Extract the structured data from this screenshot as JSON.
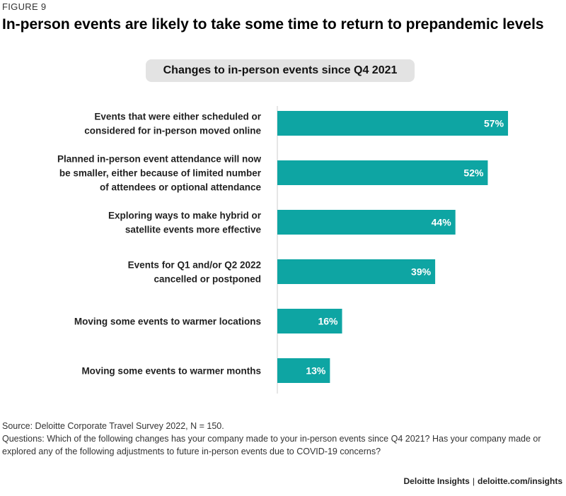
{
  "figure_label": "FIGURE 9",
  "title": "In-person events are likely to take some time to return to prepandemic levels",
  "chart_data": {
    "type": "bar",
    "orientation": "horizontal",
    "title": "Changes to in-person events since Q4 2021",
    "categories": [
      [
        "Events that were either scheduled or",
        "considered for in-person moved online"
      ],
      [
        "Planned in-person event attendance will now",
        "be smaller, either because of limited number",
        "of attendees or optional attendance"
      ],
      [
        "Exploring ways to make hybrid or",
        "satellite events more effective"
      ],
      [
        "Events for Q1 and/or Q2 2022",
        "cancelled or postponed"
      ],
      [
        "Moving some events to warmer locations"
      ],
      [
        "Moving some events to warmer months"
      ]
    ],
    "values": [
      57,
      52,
      44,
      39,
      16,
      13
    ],
    "value_labels": [
      "57%",
      "52%",
      "44%",
      "39%",
      "16%",
      "13%"
    ],
    "xlim": [
      0,
      100
    ],
    "unit": "%",
    "bar_color": "#0ea5a3",
    "axis_color": "#cccccc"
  },
  "notes": {
    "source": "Source: Deloitte Corporate Travel Survey 2022, N = 150.",
    "questions": "Questions: Which of the following changes has your company made to your in-person events since Q4 2021? Has your company made or explored any of the following adjustments to future in-person events due to COVID-19 concerns?"
  },
  "credit": {
    "brand": "Deloitte Insights",
    "url": "deloitte.com/insights"
  }
}
